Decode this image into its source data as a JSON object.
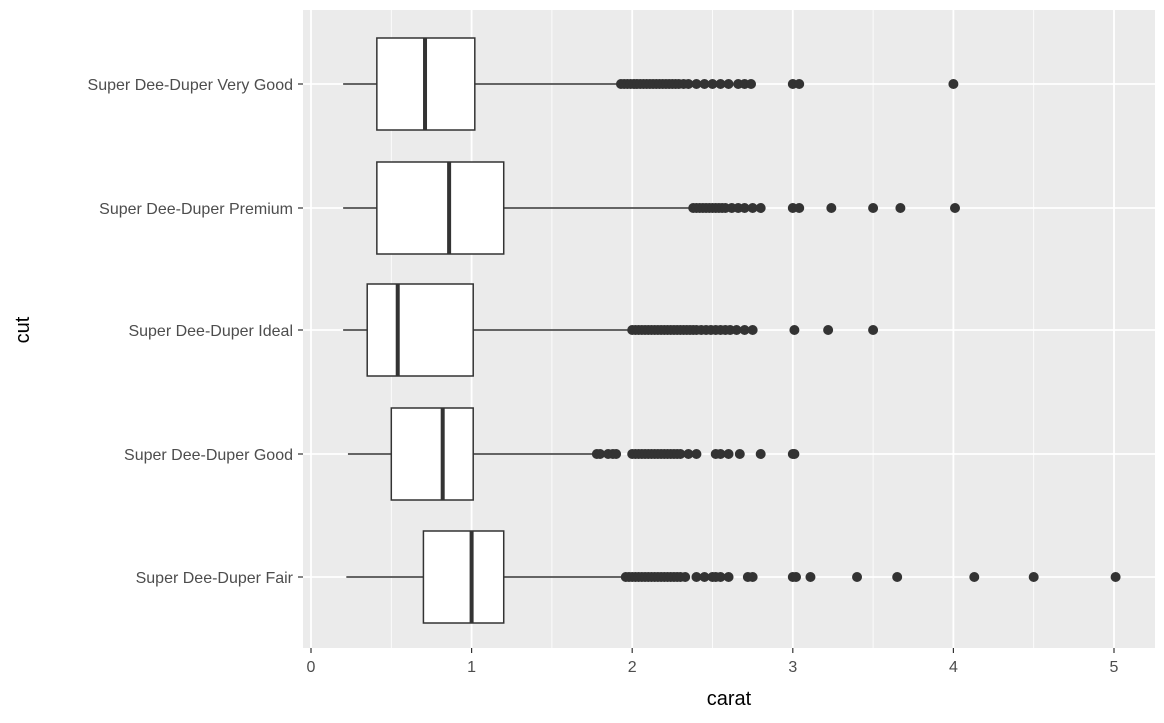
{
  "chart_data": {
    "type": "boxplot",
    "orientation": "horizontal",
    "xlabel": "carat",
    "ylabel": "cut",
    "xlim": [
      -0.04,
      5.23
    ],
    "x_ticks": [
      0,
      1,
      2,
      3,
      4,
      5
    ],
    "x_tick_labels": [
      "0",
      "1",
      "2",
      "3",
      "4",
      "5"
    ],
    "grid": true,
    "colors": {
      "panel": "#EBEBEB",
      "grid": "#FFFFFF",
      "box_fill": "#FFFFFF",
      "line": "#333333",
      "tick_text": "#4D4D4D"
    },
    "categories": [
      "Super Dee-Duper Very Good",
      "Super Dee-Duper Premium",
      "Super Dee-Duper Ideal",
      "Super Dee-Duper Good",
      "Super Dee-Duper Fair"
    ],
    "boxes": [
      {
        "category": "Super Dee-Duper Very Good",
        "min": 0.2,
        "q1": 0.41,
        "median": 0.71,
        "q3": 1.02,
        "max": 1.92,
        "outliers": [
          1.93,
          1.95,
          1.97,
          1.99,
          2.01,
          2.03,
          2.05,
          2.07,
          2.09,
          2.11,
          2.13,
          2.15,
          2.17,
          2.19,
          2.21,
          2.23,
          2.25,
          2.27,
          2.29,
          2.32,
          2.35,
          2.4,
          2.45,
          2.5,
          2.55,
          2.6,
          2.66,
          2.7,
          2.74,
          3.0,
          3.04,
          4.0
        ]
      },
      {
        "category": "Super Dee-Duper Premium",
        "min": 0.2,
        "q1": 0.41,
        "median": 0.86,
        "q3": 1.2,
        "max": 2.37,
        "outliers": [
          2.38,
          2.4,
          2.42,
          2.44,
          2.46,
          2.48,
          2.5,
          2.52,
          2.54,
          2.56,
          2.58,
          2.62,
          2.66,
          2.7,
          2.75,
          2.8,
          3.0,
          3.04,
          3.24,
          3.5,
          3.67,
          4.01
        ]
      },
      {
        "category": "Super Dee-Duper Ideal",
        "min": 0.2,
        "q1": 0.35,
        "median": 0.54,
        "q3": 1.01,
        "max": 1.99,
        "outliers": [
          2.0,
          2.02,
          2.04,
          2.06,
          2.08,
          2.1,
          2.12,
          2.14,
          2.16,
          2.18,
          2.2,
          2.22,
          2.24,
          2.26,
          2.28,
          2.3,
          2.32,
          2.34,
          2.36,
          2.38,
          2.4,
          2.43,
          2.46,
          2.49,
          2.52,
          2.55,
          2.58,
          2.61,
          2.65,
          2.7,
          2.75,
          3.01,
          3.22,
          3.5
        ]
      },
      {
        "category": "Super Dee-Duper Good",
        "min": 0.23,
        "q1": 0.5,
        "median": 0.82,
        "q3": 1.01,
        "max": 1.77,
        "outliers": [
          1.78,
          1.8,
          1.85,
          1.88,
          1.9,
          2.0,
          2.02,
          2.04,
          2.06,
          2.08,
          2.1,
          2.12,
          2.14,
          2.16,
          2.18,
          2.2,
          2.22,
          2.24,
          2.26,
          2.28,
          2.3,
          2.35,
          2.4,
          2.52,
          2.55,
          2.6,
          2.67,
          2.8,
          3.0,
          3.01
        ]
      },
      {
        "category": "Super Dee-Duper Fair",
        "min": 0.22,
        "q1": 0.7,
        "median": 1.0,
        "q3": 1.2,
        "max": 1.95,
        "outliers": [
          1.96,
          1.98,
          2.0,
          2.02,
          2.04,
          2.06,
          2.08,
          2.1,
          2.12,
          2.14,
          2.16,
          2.18,
          2.2,
          2.22,
          2.24,
          2.26,
          2.28,
          2.3,
          2.33,
          2.4,
          2.45,
          2.5,
          2.52,
          2.55,
          2.6,
          2.72,
          2.75,
          3.0,
          3.02,
          3.11,
          3.4,
          3.65,
          4.13,
          4.5,
          5.01
        ]
      }
    ]
  }
}
